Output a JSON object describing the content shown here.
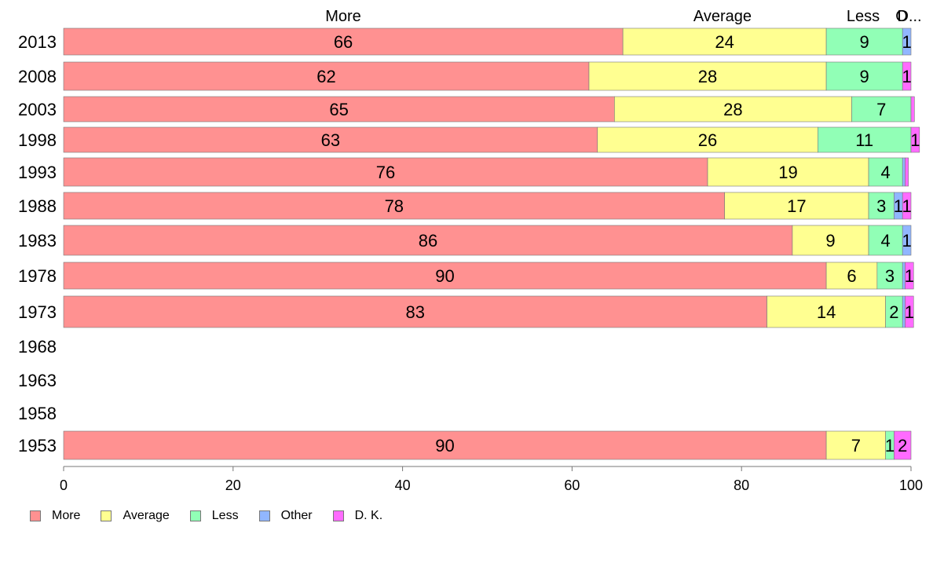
{
  "chart_data": {
    "type": "bar",
    "orientation": "horizontal",
    "stacked": true,
    "categories": [
      "2013",
      "2008",
      "2003",
      "1998",
      "1993",
      "1988",
      "1983",
      "1978",
      "1973",
      "1968",
      "1963",
      "1958",
      "1953"
    ],
    "series": [
      {
        "name": "More",
        "color": "#ff9191",
        "values": [
          66,
          62,
          65,
          63,
          76,
          78,
          86,
          90,
          83,
          null,
          null,
          null,
          90
        ],
        "labels": [
          "66",
          "62",
          "65",
          "63",
          "76",
          "78",
          "86",
          "90",
          "83",
          "",
          "",
          "",
          "90"
        ]
      },
      {
        "name": "Average",
        "color": "#ffff91",
        "values": [
          24,
          28,
          28,
          26,
          19,
          17,
          9,
          6,
          14,
          null,
          null,
          null,
          7
        ],
        "labels": [
          "24",
          "28",
          "28",
          "26",
          "19",
          "17",
          "9",
          "6",
          "14",
          "",
          "",
          "",
          "7"
        ]
      },
      {
        "name": "Less",
        "color": "#91ffb6",
        "values": [
          9,
          9,
          7,
          11,
          4,
          3,
          4,
          3,
          2,
          null,
          null,
          null,
          1
        ],
        "labels": [
          "9",
          "9",
          "7",
          "11",
          "4",
          "3",
          "4",
          "3",
          "2",
          "",
          "",
          "",
          "1"
        ]
      },
      {
        "name": "Other",
        "color": "#91b6ff",
        "values": [
          1,
          0,
          0,
          0,
          0.3,
          1,
          1,
          0.3,
          0.3,
          null,
          null,
          null,
          0
        ],
        "labels": [
          "1",
          "",
          "",
          "",
          "",
          "1",
          "1",
          "",
          "",
          "",
          "",
          "",
          ""
        ]
      },
      {
        "name": "D. K.",
        "color": "#ff6bff",
        "values": [
          0,
          1,
          0.4,
          1,
          0.4,
          1,
          0,
          1,
          1,
          null,
          null,
          null,
          2
        ],
        "labels": [
          "",
          "1",
          "",
          "1",
          "",
          "1",
          "",
          "1",
          "1",
          "",
          "",
          "",
          "2"
        ]
      }
    ],
    "top_labels": [
      "More",
      "Average",
      "Less",
      "O",
      "D..."
    ],
    "xlim": [
      0,
      100
    ],
    "xticks": [
      "0",
      "20",
      "40",
      "60",
      "80",
      "100"
    ],
    "grid": false,
    "legend_position": "bottom-left"
  }
}
